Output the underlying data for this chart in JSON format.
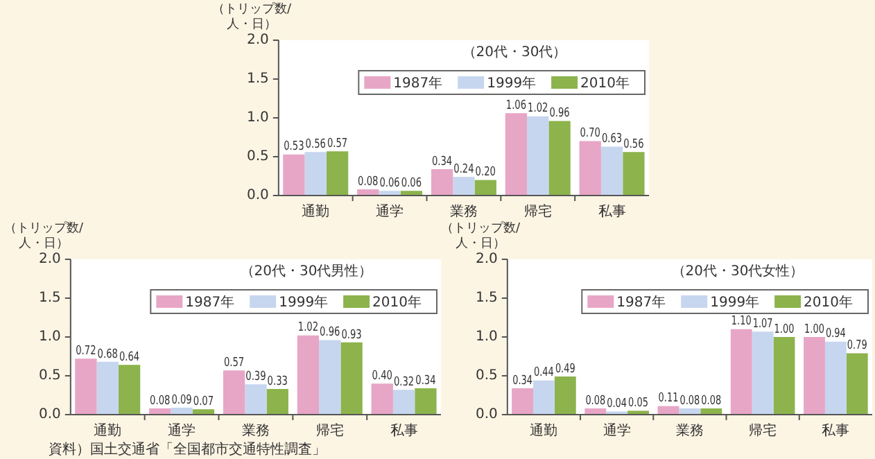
{
  "chart_data": [
    {
      "type": "bar",
      "subtitle": "（20代・30代）",
      "ylabel": "（トリップ数/\n人・日）",
      "categories": [
        "通勤",
        "通学",
        "業務",
        "帰宅",
        "私事"
      ],
      "series": [
        {
          "name": "1987年",
          "color": "#e8a6c6",
          "values": [
            0.53,
            0.08,
            0.34,
            1.06,
            0.7
          ],
          "value_labels": [
            "0.53",
            "0.08",
            "0.34",
            "1.06",
            "0.70"
          ]
        },
        {
          "name": "1999年",
          "color": "#c6d6ef",
          "values": [
            0.56,
            0.06,
            0.24,
            1.02,
            0.63
          ],
          "value_labels": [
            "0.56",
            "0.06",
            "0.24",
            "1.02",
            "0.63"
          ]
        },
        {
          "name": "2010年",
          "color": "#8db34c",
          "values": [
            0.57,
            0.06,
            0.2,
            0.96,
            0.56
          ],
          "value_labels": [
            "0.57",
            "0.06",
            "0.20",
            "0.96",
            "0.56"
          ]
        }
      ],
      "ylim": [
        0,
        2
      ],
      "yticks": [
        {
          "value": 0,
          "label": "0.0"
        },
        {
          "value": 0.5,
          "label": "0.5"
        },
        {
          "value": 1,
          "label": "1.0"
        },
        {
          "value": 1.5,
          "label": "1.5"
        },
        {
          "value": 2,
          "label": "2.0"
        }
      ],
      "grid": false,
      "legend": "top right"
    },
    {
      "type": "bar",
      "subtitle": "（20代・30代男性）",
      "ylabel": "（トリップ数/\n人・日）",
      "categories": [
        "通勤",
        "通学",
        "業務",
        "帰宅",
        "私事"
      ],
      "series": [
        {
          "name": "1987年",
          "color": "#e8a6c6",
          "values": [
            0.72,
            0.08,
            0.57,
            1.02,
            0.4
          ],
          "value_labels": [
            "0.72",
            "0.08",
            "0.57",
            "1.02",
            "0.40"
          ]
        },
        {
          "name": "1999年",
          "color": "#c6d6ef",
          "values": [
            0.68,
            0.09,
            0.39,
            0.96,
            0.32
          ],
          "value_labels": [
            "0.68",
            "0.09",
            "0.39",
            "0.96",
            "0.32"
          ]
        },
        {
          "name": "2010年",
          "color": "#8db34c",
          "values": [
            0.64,
            0.07,
            0.33,
            0.93,
            0.34
          ],
          "value_labels": [
            "0.64",
            "0.07",
            "0.33",
            "0.93",
            "0.34"
          ]
        }
      ],
      "ylim": [
        0,
        2
      ],
      "yticks": [
        {
          "value": 0,
          "label": "0.0"
        },
        {
          "value": 0.5,
          "label": "0.5"
        },
        {
          "value": 1,
          "label": "1.0"
        },
        {
          "value": 1.5,
          "label": "1.5"
        },
        {
          "value": 2,
          "label": "2.0"
        }
      ],
      "grid": false,
      "legend": "top right",
      "annotations": [
        "資料）国土交通省「全国都市交通特性調査」"
      ]
    },
    {
      "type": "bar",
      "subtitle": "（20代・30代女性）",
      "ylabel": "（トリップ数/\n人・日）",
      "categories": [
        "通勤",
        "通学",
        "業務",
        "帰宅",
        "私事"
      ],
      "series": [
        {
          "name": "1987年",
          "color": "#e8a6c6",
          "values": [
            0.34,
            0.08,
            0.11,
            1.1,
            1.0
          ],
          "value_labels": [
            "0.34",
            "0.08",
            "0.11",
            "1.10",
            "1.00"
          ]
        },
        {
          "name": "1999年",
          "color": "#c6d6ef",
          "values": [
            0.44,
            0.04,
            0.08,
            1.07,
            0.94
          ],
          "value_labels": [
            "0.44",
            "0.04",
            "0.08",
            "1.07",
            "0.94"
          ]
        },
        {
          "name": "2010年",
          "color": "#8db34c",
          "values": [
            0.49,
            0.05,
            0.08,
            1.0,
            0.79
          ],
          "value_labels": [
            "0.49",
            "0.05",
            "0.08",
            "1.00",
            "0.79"
          ]
        }
      ],
      "ylim": [
        0,
        2
      ],
      "yticks": [
        {
          "value": 0,
          "label": "0.0"
        },
        {
          "value": 0.5,
          "label": "0.5"
        },
        {
          "value": 1,
          "label": "1.0"
        },
        {
          "value": 1.5,
          "label": "1.5"
        },
        {
          "value": 2,
          "label": "2.0"
        }
      ],
      "grid": false,
      "legend": "top right"
    }
  ]
}
